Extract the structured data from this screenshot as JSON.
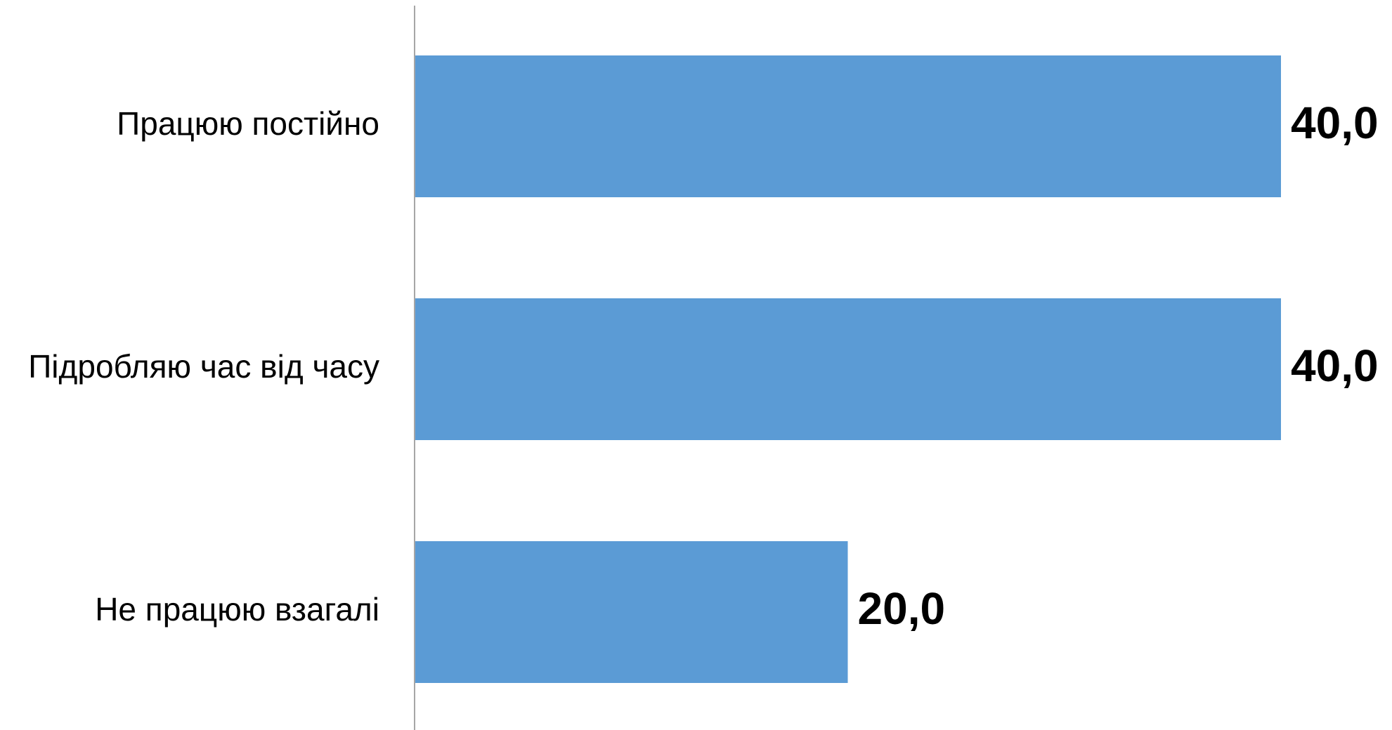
{
  "chart_data": {
    "type": "bar",
    "orientation": "horizontal",
    "categories": [
      "Працюю постійно",
      "Підробляю час від часу",
      "Не працюю взагалі"
    ],
    "values": [
      40.0,
      40.0,
      20.0
    ],
    "value_labels": [
      "40,0",
      "40,0",
      "20,0"
    ],
    "title": "",
    "xlabel": "",
    "ylabel": "",
    "xlim": [
      0,
      40
    ],
    "grid": false,
    "legend": "none",
    "bar_color": "#5B9BD5",
    "axis_color": "#A6A6A6"
  }
}
